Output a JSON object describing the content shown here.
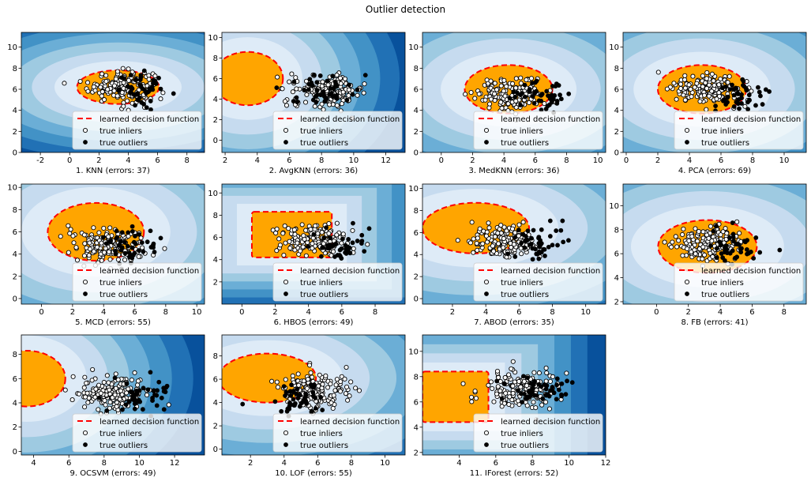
{
  "suptitle": "Outlier detection",
  "colors": {
    "decision_line": "#ff0000",
    "inlier_region": "#ffa500",
    "inlier_marker_fill": "#ffffff",
    "outlier_marker_fill": "#000000",
    "blues": [
      "#f7fbff",
      "#deebf7",
      "#c6dbef",
      "#9ecae1",
      "#6baed6",
      "#4292c6",
      "#2171b5",
      "#08519c",
      "#08306b"
    ]
  },
  "legend_items": [
    "learned decision function",
    "true inliers",
    "true outliers"
  ],
  "chart_data": [
    {
      "type": "scatter",
      "title": "1. KNN (errors: 37)",
      "xlim": [
        -3.3,
        9.2
      ],
      "ylim": [
        0,
        11.4
      ],
      "xticks": [
        -2,
        0,
        2,
        4,
        6,
        8
      ],
      "yticks": [
        0,
        2,
        4,
        6,
        8,
        10
      ],
      "inlier_center": [
        3.5,
        6.3
      ],
      "inlier_spread": [
        1.3,
        1.0
      ],
      "outlier_center": [
        5.2,
        5.9
      ],
      "region": {
        "shape": "ellipse",
        "cx": 3.3,
        "cy": 6.2,
        "rx": 2.8,
        "ry": 1.6
      },
      "legend": "lower right",
      "grid": false
    },
    {
      "type": "scatter",
      "title": "2. AvgKNN (errors: 36)",
      "xlim": [
        1.8,
        13.2
      ],
      "ylim": [
        -1.2,
        10.5
      ],
      "xticks": [
        2,
        4,
        6,
        8,
        10,
        12
      ],
      "yticks": [
        0,
        2,
        4,
        6,
        8,
        10
      ],
      "inlier_center": [
        8.4,
        4.8
      ],
      "inlier_spread": [
        1.4,
        1.0
      ],
      "outlier_center": [
        8.0,
        5.0
      ],
      "region": {
        "shape": "ellipse",
        "cx": 3.4,
        "cy": 6.0,
        "rx": 2.2,
        "ry": 2.6
      },
      "legend": "lower right",
      "grid": false
    },
    {
      "type": "scatter",
      "title": "3. MedKNN (errors: 36)",
      "xlim": [
        -1.2,
        10.5
      ],
      "ylim": [
        0,
        11.4
      ],
      "xticks": [
        0,
        2,
        4,
        6,
        8,
        10
      ],
      "yticks": [
        0,
        2,
        4,
        6,
        8,
        10
      ],
      "inlier_center": [
        4.5,
        5.5
      ],
      "inlier_spread": [
        1.3,
        1.0
      ],
      "outlier_center": [
        6.4,
        5.4
      ],
      "region": {
        "shape": "ellipse",
        "cx": 4.3,
        "cy": 6.0,
        "rx": 2.8,
        "ry": 2.3
      },
      "legend": "lower right",
      "grid": false
    },
    {
      "type": "scatter",
      "title": "4. PCA (errors: 69)",
      "xlim": [
        -0.2,
        11.4
      ],
      "ylim": [
        0,
        11.4
      ],
      "xticks": [
        0,
        2,
        4,
        6,
        8,
        10
      ],
      "yticks": [
        0,
        2,
        4,
        6,
        8,
        10
      ],
      "inlier_center": [
        5.2,
        6.0
      ],
      "inlier_spread": [
        1.3,
        1.0
      ],
      "outlier_center": [
        7.2,
        5.6
      ],
      "region": {
        "shape": "ellipse",
        "cx": 4.8,
        "cy": 6.0,
        "rx": 2.8,
        "ry": 2.3
      },
      "legend": "lower right",
      "grid": false
    },
    {
      "type": "scatter",
      "title": "5. MCD (errors: 55)",
      "xlim": [
        -1.3,
        10.5
      ],
      "ylim": [
        -0.5,
        10.3
      ],
      "xticks": [
        0,
        2,
        4,
        6,
        8,
        10
      ],
      "yticks": [
        0,
        2,
        4,
        6,
        8,
        10
      ],
      "inlier_center": [
        4.2,
        4.8
      ],
      "inlier_spread": [
        1.3,
        1.0
      ],
      "outlier_center": [
        5.8,
        4.8
      ],
      "region": {
        "shape": "ellipse",
        "cx": 3.5,
        "cy": 6.0,
        "rx": 3.1,
        "ry": 2.6
      },
      "legend": "lower right",
      "grid": false
    },
    {
      "type": "scatter",
      "title": "6. HBOS (errors: 49)",
      "xlim": [
        -1.2,
        9.8
      ],
      "ylim": [
        0,
        10.8
      ],
      "xticks": [
        0,
        2,
        4,
        6,
        8
      ],
      "yticks": [
        2,
        4,
        6,
        8,
        10
      ],
      "inlier_center": [
        4.3,
        5.8
      ],
      "inlier_spread": [
        1.2,
        1.0
      ],
      "outlier_center": [
        5.8,
        5.4
      ],
      "region": {
        "shape": "rect",
        "x0": 0.6,
        "x1": 5.4,
        "y0": 4.2,
        "y1": 8.3
      },
      "legend": "lower right",
      "grid": false
    },
    {
      "type": "scatter",
      "title": "7. ABOD (errors: 35)",
      "xlim": [
        0.2,
        11.2
      ],
      "ylim": [
        -0.5,
        10.4
      ],
      "xticks": [
        2,
        4,
        6,
        8,
        10
      ],
      "yticks": [
        0,
        2,
        4,
        6,
        8,
        10
      ],
      "inlier_center": [
        5.2,
        5.2
      ],
      "inlier_spread": [
        1.2,
        1.0
      ],
      "outlier_center": [
        7.2,
        5.0
      ],
      "region": {
        "shape": "ellipse",
        "cx": 3.4,
        "cy": 6.4,
        "rx": 3.2,
        "ry": 2.3
      },
      "legend": "lower right",
      "grid": false
    },
    {
      "type": "scatter",
      "title": "8. FB (errors: 41)",
      "xlim": [
        -2.1,
        9.4
      ],
      "ylim": [
        1.8,
        11.8
      ],
      "xticks": [
        0,
        2,
        4,
        6,
        8
      ],
      "yticks": [
        2,
        4,
        6,
        8,
        10
      ],
      "inlier_center": [
        3.3,
        6.8
      ],
      "inlier_spread": [
        1.3,
        1.0
      ],
      "outlier_center": [
        5.0,
        6.5
      ],
      "region": {
        "shape": "ellipse",
        "cx": 3.2,
        "cy": 6.6,
        "rx": 3.1,
        "ry": 2.2
      },
      "legend": "lower right",
      "grid": false
    },
    {
      "type": "scatter",
      "title": "9. OCSVM (errors: 49)",
      "xlim": [
        3.3,
        13.7
      ],
      "ylim": [
        -0.3,
        9.6
      ],
      "xticks": [
        4,
        6,
        8,
        10,
        12
      ],
      "yticks": [
        0,
        2,
        4,
        6,
        8
      ],
      "inlier_center": [
        8.5,
        4.8
      ],
      "inlier_spread": [
        1.1,
        0.9
      ],
      "outlier_center": [
        10.2,
        4.6
      ],
      "region": {
        "shape": "ellipse",
        "cx": 3.6,
        "cy": 6.0,
        "rx": 2.2,
        "ry": 2.3
      },
      "legend": "lower right",
      "grid": false
    },
    {
      "type": "scatter",
      "title": "10. LOF (errors: 55)",
      "xlim": [
        0.3,
        11.2
      ],
      "ylim": [
        -0.5,
        9.8
      ],
      "xticks": [
        2,
        4,
        6,
        8,
        10
      ],
      "yticks": [
        0,
        2,
        4,
        6,
        8
      ],
      "inlier_center": [
        5.9,
        5.0
      ],
      "inlier_spread": [
        1.1,
        1.0
      ],
      "outlier_center": [
        4.8,
        4.3
      ],
      "region": {
        "shape": "ellipse",
        "cx": 3.0,
        "cy": 6.1,
        "rx": 2.9,
        "ry": 2.1
      },
      "legend": "lower right",
      "grid": false
    },
    {
      "type": "scatter",
      "title": "11. IForest (errors: 52)",
      "xlim": [
        2.0,
        12.0
      ],
      "ylim": [
        1.8,
        11.3
      ],
      "xticks": [
        4,
        6,
        8,
        10,
        12
      ],
      "yticks": [
        2,
        4,
        6,
        8,
        10
      ],
      "inlier_center": [
        7.2,
        7.0
      ],
      "inlier_spread": [
        1.2,
        1.0
      ],
      "outlier_center": [
        8.3,
        7.2
      ],
      "region": {
        "shape": "rect",
        "x0": 2.0,
        "x1": 5.6,
        "y0": 4.4,
        "y1": 8.4
      },
      "legend": "lower right",
      "grid": false
    }
  ]
}
